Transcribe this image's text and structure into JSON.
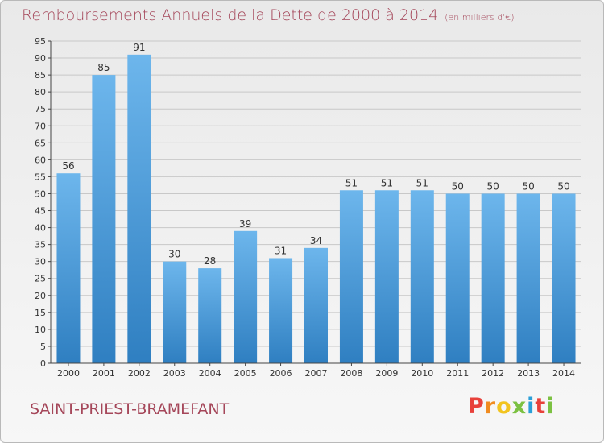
{
  "header": {
    "title": "Remboursements Annuels de la Dette de 2000 à 2014",
    "unit": "(en milliers d'€)"
  },
  "footer": {
    "town": "SAINT-PRIEST-BRAMEFANT",
    "logo_letters": [
      "P",
      "r",
      "o",
      "x",
      "i",
      "t",
      "i"
    ],
    "logo_colors": [
      "#e8413b",
      "#f08b1f",
      "#f2c41f",
      "#7cc142",
      "#2a9fd8",
      "#e8413b",
      "#7cc142"
    ]
  },
  "colors": {
    "bar_top": "#6db6ec",
    "bar_bottom": "#2f7fc1",
    "axis": "#444444",
    "grid": "#c8c8c8",
    "text": "#333333"
  },
  "chart_data": {
    "type": "bar",
    "categories": [
      "2000",
      "2001",
      "2002",
      "2003",
      "2004",
      "2005",
      "2006",
      "2007",
      "2008",
      "2009",
      "2010",
      "2011",
      "2012",
      "2013",
      "2014"
    ],
    "values": [
      56,
      85,
      91,
      30,
      28,
      39,
      31,
      34,
      51,
      51,
      51,
      50,
      50,
      50,
      50
    ],
    "ylim": [
      0,
      95
    ],
    "ytick_step": 5,
    "grid": true,
    "data_labels": true
  }
}
